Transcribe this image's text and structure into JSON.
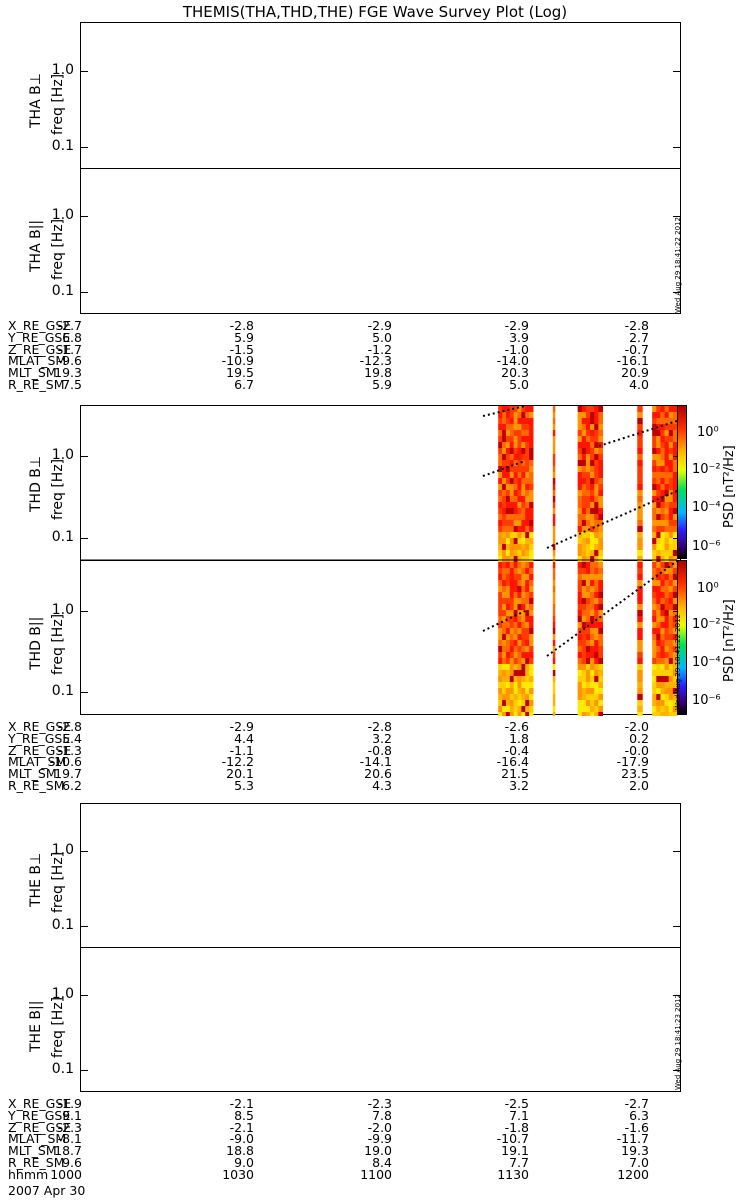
{
  "title": "THEMIS(THA,THD,THE) FGE Wave Survey Plot (Log)",
  "panels": [
    {
      "id": "tha-bperp",
      "ylabel": "THA B⊥",
      "unit": "freq [Hz]"
    },
    {
      "id": "tha-bpar",
      "ylabel": "THA B||",
      "unit": "freq [Hz]"
    },
    {
      "id": "thd-bperp",
      "ylabel": "THD B⊥",
      "unit": "freq [Hz]"
    },
    {
      "id": "thd-bpar",
      "ylabel": "THD B||",
      "unit": "freq [Hz]"
    },
    {
      "id": "the-bperp",
      "ylabel": "THE B⊥",
      "unit": "freq [Hz]"
    },
    {
      "id": "the-bpar",
      "ylabel": "THE B||",
      "unit": "freq [Hz]"
    }
  ],
  "yticks": [
    "1.0",
    "0.1"
  ],
  "colorbar": {
    "title": "PSD [nT²/Hz]",
    "ticks": [
      "10⁰",
      "10⁻²",
      "10⁻⁴",
      "10⁻⁶"
    ]
  },
  "stamps": {
    "tha": "Wed Aug 29 18:41:22 2012",
    "thd": "Wed Aug 29 18:41:22 2012",
    "the": "Wed Aug 29 18:41:23 2012"
  },
  "ephemeris": {
    "tha": [
      {
        "label": "X_RE_GSE",
        "values": [
          "-2.7",
          "-2.8",
          "-2.9",
          "-2.9",
          "-2.8"
        ]
      },
      {
        "label": "Y_RE_GSE",
        "values": [
          "6.8",
          "5.9",
          "5.0",
          "3.9",
          "2.7"
        ]
      },
      {
        "label": "Z_RE_GSE",
        "values": [
          "-1.7",
          "-1.5",
          "-1.2",
          "-1.0",
          "-0.7"
        ]
      },
      {
        "label": "MLAT_SM",
        "values": [
          "-9.6",
          "-10.9",
          "-12.3",
          "-14.0",
          "-16.1"
        ]
      },
      {
        "label": "MLT_SM",
        "values": [
          "19.3",
          "19.5",
          "19.8",
          "20.3",
          "20.9"
        ]
      },
      {
        "label": "R_RE_SM",
        "values": [
          "7.5",
          "6.7",
          "5.9",
          "5.0",
          "4.0"
        ]
      }
    ],
    "thd": [
      {
        "label": "X_RE_GSE",
        "values": [
          "-2.8",
          "-2.9",
          "-2.8",
          "-2.6",
          "-2.0"
        ]
      },
      {
        "label": "Y_RE_GSE",
        "values": [
          "5.4",
          "4.4",
          "3.2",
          "1.8",
          "0.2"
        ]
      },
      {
        "label": "Z_RE_GSE",
        "values": [
          "-1.3",
          "-1.1",
          "-0.8",
          "-0.4",
          "-0.0"
        ]
      },
      {
        "label": "MLAT_SM",
        "values": [
          "-10.6",
          "-12.2",
          "-14.1",
          "-16.4",
          "-17.9"
        ]
      },
      {
        "label": "MLT_SM",
        "values": [
          "19.7",
          "20.1",
          "20.6",
          "21.5",
          "23.5"
        ]
      },
      {
        "label": "R_RE_SM",
        "values": [
          "6.2",
          "5.3",
          "4.3",
          "3.2",
          "2.0"
        ]
      }
    ],
    "the": [
      {
        "label": "X_RE_GSE",
        "values": [
          "-1.9",
          "-2.1",
          "-2.3",
          "-2.5",
          "-2.7"
        ]
      },
      {
        "label": "Y_RE_GSE",
        "values": [
          "9.1",
          "8.5",
          "7.8",
          "7.1",
          "6.3"
        ]
      },
      {
        "label": "Z_RE_GSE",
        "values": [
          "-2.3",
          "-2.1",
          "-2.0",
          "-1.8",
          "-1.6"
        ]
      },
      {
        "label": "MLAT_SM",
        "values": [
          "-8.1",
          "-9.0",
          "-9.9",
          "-10.7",
          "-11.7"
        ]
      },
      {
        "label": "MLT_SM",
        "values": [
          "18.7",
          "18.8",
          "19.0",
          "19.1",
          "19.3"
        ]
      },
      {
        "label": "R_RE_SM",
        "values": [
          "9.6",
          "9.0",
          "8.4",
          "7.7",
          "7.0"
        ]
      },
      {
        "label": "hhmm",
        "values": [
          "1000",
          "1030",
          "1100",
          "1130",
          "1200"
        ]
      }
    ]
  },
  "date": "2007 Apr 30",
  "chart_data": {
    "type": "heatmap",
    "title": "THEMIS(THA,THD,THE) FGE Wave Survey Plot (Log)",
    "xlabel": "hhmm",
    "x_ticks": [
      "1000",
      "1030",
      "1100",
      "1130",
      "1200"
    ],
    "ylabel": "freq [Hz]",
    "y_scale": "log",
    "y_ticks": [
      1.0,
      0.1
    ],
    "colorbar_label": "PSD [nT²/Hz]",
    "colorbar_ticks": [
      "10⁰",
      "10⁻²",
      "10⁻⁴",
      "10⁻⁶"
    ],
    "data_intervals_thd_hhmm": [
      [
        "1124",
        "1131"
      ],
      [
        "1135",
        "1135"
      ],
      [
        "1140",
        "1145"
      ],
      [
        "1152",
        "1153"
      ],
      [
        "1155",
        "1200"
      ]
    ],
    "note_tha_the": ""
  }
}
